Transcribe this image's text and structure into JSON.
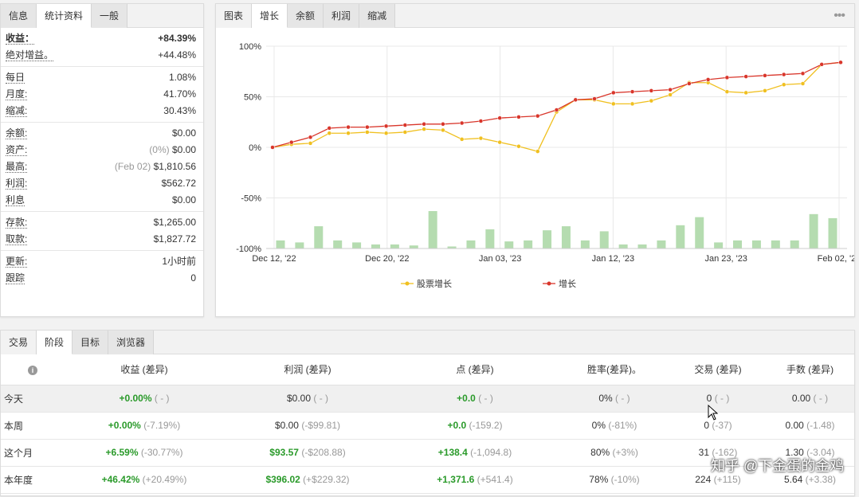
{
  "stats": {
    "tabs": [
      "信息",
      "统计资料",
      "一般"
    ],
    "groups": [
      [
        {
          "label": "收益：",
          "value": "+84.39%",
          "green": true,
          "bold": true
        },
        {
          "label": "绝对增益。",
          "value": "+44.48%",
          "green": true,
          "bold": false
        }
      ],
      [
        {
          "label": "每日",
          "value": "1.08%"
        },
        {
          "label": "月度:",
          "value": "41.70%"
        },
        {
          "label": "缩减:",
          "value": "30.43%"
        }
      ],
      [
        {
          "label": "余额:",
          "value": "$0.00"
        },
        {
          "label": "资产:",
          "muted": "(0%)",
          "value": "$0.00"
        },
        {
          "label": "最高:",
          "muted": "(Feb 02)",
          "value": "$1,810.56"
        },
        {
          "label": "利润:",
          "value": "$562.72",
          "green": true
        },
        {
          "label": "利息",
          "value": "$0.00"
        }
      ],
      [
        {
          "label": "存款:",
          "value": "$1,265.00"
        },
        {
          "label": "取款:",
          "value": "$1,827.72"
        }
      ],
      [
        {
          "label": "更新:",
          "value": "1小时前"
        },
        {
          "label": "跟踪",
          "value": "0"
        }
      ]
    ]
  },
  "chart": {
    "tabs": [
      "图表",
      "增长",
      "余额",
      "利润",
      "缩减"
    ],
    "menu_icon": "•••"
  },
  "chart_data": {
    "type": "line",
    "x_ticks": [
      "Dec 12, '22",
      "Dec 20, '22",
      "Jan 03, '23",
      "Jan 12, '23",
      "Jan 23, '23",
      "Feb 02, '23"
    ],
    "y_ticks": [
      "100%",
      "50%",
      "0%",
      "-50%",
      "-100%"
    ],
    "ylim": [
      -100,
      100
    ],
    "series": [
      {
        "name": "股票增长",
        "color": "#f0c020",
        "values": [
          0,
          3,
          4,
          14,
          14,
          15,
          14,
          15,
          18,
          17,
          8,
          9,
          5,
          1,
          -4,
          35,
          47,
          47,
          43,
          43,
          46,
          52,
          64,
          64,
          55,
          54,
          56,
          62,
          63,
          82,
          84
        ]
      },
      {
        "name": "增长",
        "color": "#d9362b",
        "values": [
          0,
          5,
          10,
          19,
          20,
          20,
          21,
          22,
          23,
          23,
          24,
          26,
          29,
          30,
          31,
          37,
          47,
          48,
          54,
          55,
          56,
          57,
          63,
          67,
          69,
          70,
          71,
          72,
          73,
          82,
          84
        ]
      }
    ],
    "bars": {
      "color": "#b5dcb0",
      "values": [
        8,
        6,
        22,
        8,
        6,
        4,
        4,
        3,
        37,
        2,
        8,
        19,
        7,
        8,
        18,
        22,
        8,
        17,
        4,
        4,
        8,
        23,
        31,
        6,
        8,
        8,
        8,
        8,
        34,
        30
      ]
    },
    "grid": true,
    "legend": "bottom"
  },
  "bottom": {
    "tabs": [
      "交易",
      "阶段",
      "目标",
      "浏览器"
    ],
    "headers": [
      "收益 (差异)",
      "利润 (差异)",
      "点 (差异)",
      "胜率(差异)。",
      "交易 (差异)",
      "手数 (差异)"
    ],
    "rows": [
      {
        "name": "今天",
        "cells": [
          [
            "+0.00%",
            "( - )"
          ],
          [
            "$0.00",
            "( - )"
          ],
          [
            "+0.0",
            "( - )"
          ],
          [
            "0%",
            "( - )"
          ],
          [
            "0",
            "( - )"
          ],
          [
            "0.00",
            "( - )"
          ]
        ],
        "green": [
          true,
          false,
          true,
          false,
          false,
          false
        ]
      },
      {
        "name": "本周",
        "cells": [
          [
            "+0.00%",
            "(-7.19%)"
          ],
          [
            "$0.00",
            "(-$99.81)"
          ],
          [
            "+0.0",
            "(-159.2)"
          ],
          [
            "0%",
            "(-81%)"
          ],
          [
            "0",
            "(-37)"
          ],
          [
            "0.00",
            "(-1.48)"
          ]
        ],
        "green": [
          true,
          false,
          true,
          false,
          false,
          false
        ]
      },
      {
        "name": "这个月",
        "cells": [
          [
            "+6.59%",
            "(-30.77%)"
          ],
          [
            "$93.57",
            "(-$208.88)"
          ],
          [
            "+138.4",
            "(-1,094.8)"
          ],
          [
            "80%",
            "(+3%)"
          ],
          [
            "31",
            "(-162)"
          ],
          [
            "1.30",
            "(-3.04)"
          ]
        ],
        "green": [
          true,
          true,
          true,
          false,
          false,
          false
        ]
      },
      {
        "name": "本年度",
        "cells": [
          [
            "+46.42%",
            "(+20.49%)"
          ],
          [
            "$396.02",
            "(+$229.32)"
          ],
          [
            "+1,371.6",
            "(+541.4)"
          ],
          [
            "78%",
            "(-10%)"
          ],
          [
            "224",
            "(+115)"
          ],
          [
            "5.64",
            "(+3.38)"
          ]
        ],
        "green": [
          true,
          true,
          true,
          false,
          false,
          false
        ]
      }
    ]
  },
  "watermark": "知乎 @下金蛋的金鸡"
}
